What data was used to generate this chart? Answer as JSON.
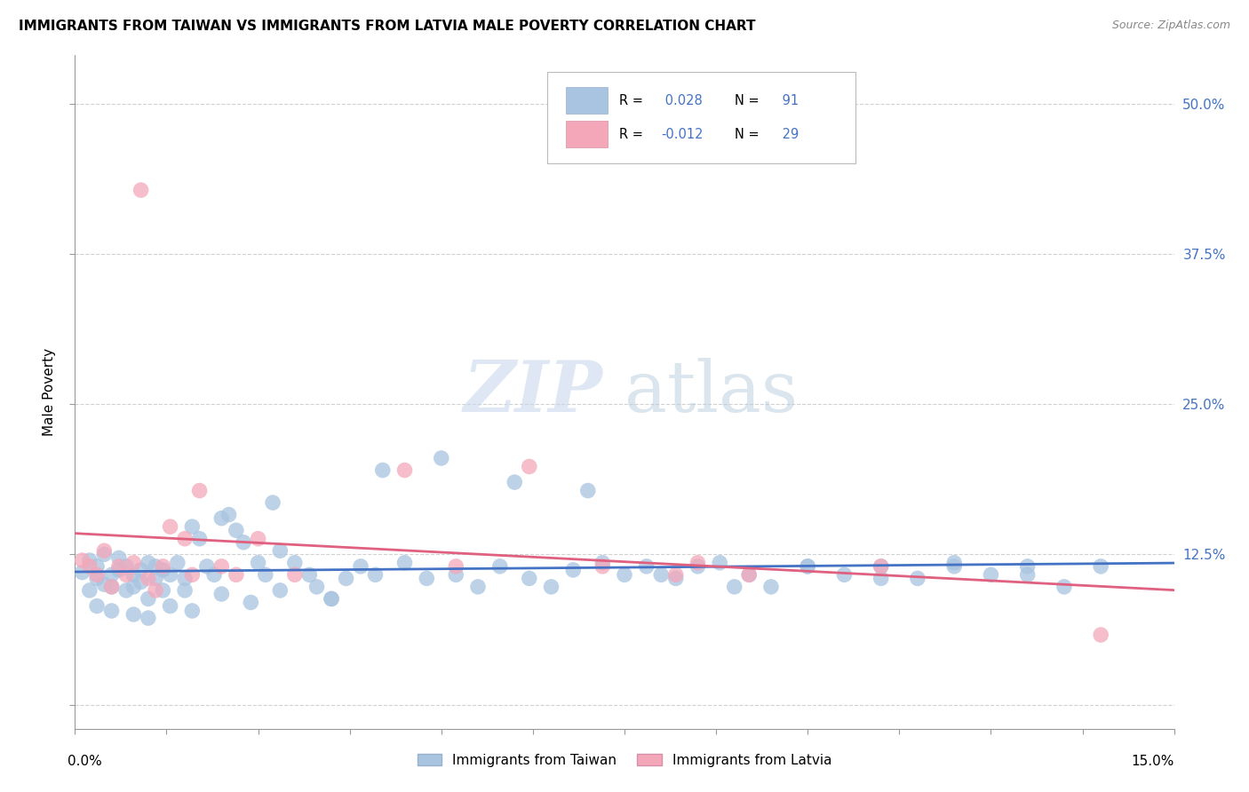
{
  "title": "IMMIGRANTS FROM TAIWAN VS IMMIGRANTS FROM LATVIA MALE POVERTY CORRELATION CHART",
  "source": "Source: ZipAtlas.com",
  "ylabel": "Male Poverty",
  "ytick_labels": [
    "",
    "12.5%",
    "25.0%",
    "37.5%",
    "50.0%"
  ],
  "ytick_values": [
    0.0,
    0.125,
    0.25,
    0.375,
    0.5
  ],
  "xlim": [
    0.0,
    0.15
  ],
  "ylim": [
    -0.02,
    0.54
  ],
  "taiwan_R": 0.028,
  "taiwan_N": 91,
  "latvia_R": -0.012,
  "latvia_N": 29,
  "taiwan_color": "#a8c4e0",
  "latvia_color": "#f4a7b9",
  "taiwan_line_color": "#4472c4",
  "latvia_line_color": "#e06080",
  "legend_taiwan_label": "Immigrants from Taiwan",
  "legend_latvia_label": "Immigrants from Latvia",
  "background_color": "#ffffff",
  "grid_color": "#cccccc",
  "taiwan_x": [
    0.001,
    0.002,
    0.002,
    0.003,
    0.003,
    0.004,
    0.004,
    0.005,
    0.005,
    0.006,
    0.006,
    0.007,
    0.007,
    0.008,
    0.008,
    0.009,
    0.009,
    0.01,
    0.01,
    0.011,
    0.011,
    0.012,
    0.012,
    0.013,
    0.014,
    0.015,
    0.015,
    0.016,
    0.017,
    0.018,
    0.019,
    0.02,
    0.021,
    0.022,
    0.023,
    0.025,
    0.026,
    0.027,
    0.028,
    0.03,
    0.032,
    0.033,
    0.035,
    0.037,
    0.039,
    0.041,
    0.045,
    0.048,
    0.052,
    0.055,
    0.058,
    0.062,
    0.065,
    0.068,
    0.072,
    0.075,
    0.078,
    0.082,
    0.085,
    0.088,
    0.092,
    0.095,
    0.1,
    0.105,
    0.11,
    0.115,
    0.12,
    0.125,
    0.13,
    0.135,
    0.003,
    0.005,
    0.008,
    0.01,
    0.013,
    0.016,
    0.02,
    0.024,
    0.028,
    0.035,
    0.042,
    0.05,
    0.06,
    0.07,
    0.08,
    0.09,
    0.1,
    0.11,
    0.12,
    0.13,
    0.14
  ],
  "taiwan_y": [
    0.11,
    0.12,
    0.095,
    0.105,
    0.115,
    0.1,
    0.125,
    0.108,
    0.098,
    0.112,
    0.122,
    0.095,
    0.115,
    0.108,
    0.098,
    0.112,
    0.102,
    0.118,
    0.088,
    0.115,
    0.105,
    0.095,
    0.112,
    0.108,
    0.118,
    0.105,
    0.095,
    0.148,
    0.138,
    0.115,
    0.108,
    0.155,
    0.158,
    0.145,
    0.135,
    0.118,
    0.108,
    0.168,
    0.128,
    0.118,
    0.108,
    0.098,
    0.088,
    0.105,
    0.115,
    0.108,
    0.118,
    0.105,
    0.108,
    0.098,
    0.115,
    0.105,
    0.098,
    0.112,
    0.118,
    0.108,
    0.115,
    0.105,
    0.115,
    0.118,
    0.108,
    0.098,
    0.115,
    0.108,
    0.115,
    0.105,
    0.118,
    0.108,
    0.115,
    0.098,
    0.082,
    0.078,
    0.075,
    0.072,
    0.082,
    0.078,
    0.092,
    0.085,
    0.095,
    0.088,
    0.195,
    0.205,
    0.185,
    0.178,
    0.108,
    0.098,
    0.115,
    0.105,
    0.115,
    0.108,
    0.115
  ],
  "latvia_x": [
    0.001,
    0.002,
    0.003,
    0.004,
    0.005,
    0.006,
    0.007,
    0.008,
    0.009,
    0.01,
    0.011,
    0.012,
    0.013,
    0.015,
    0.016,
    0.017,
    0.02,
    0.022,
    0.025,
    0.03,
    0.045,
    0.052,
    0.062,
    0.072,
    0.082,
    0.085,
    0.092,
    0.11,
    0.14
  ],
  "latvia_y": [
    0.12,
    0.115,
    0.108,
    0.128,
    0.098,
    0.115,
    0.108,
    0.118,
    0.428,
    0.105,
    0.095,
    0.115,
    0.148,
    0.138,
    0.108,
    0.178,
    0.115,
    0.108,
    0.138,
    0.108,
    0.195,
    0.115,
    0.198,
    0.115,
    0.108,
    0.118,
    0.108,
    0.115,
    0.058
  ]
}
